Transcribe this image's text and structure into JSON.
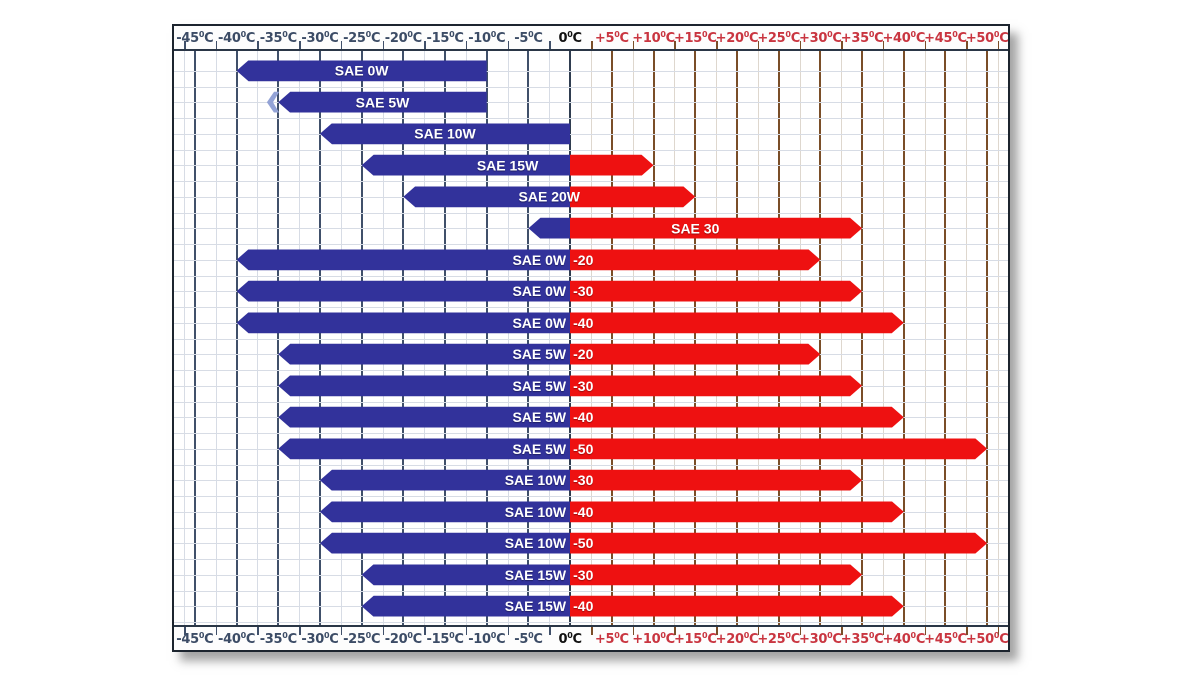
{
  "chart_data": {
    "type": "bar",
    "orientation": "horizontal-range",
    "legend": "none",
    "grid": "on",
    "x_axis": {
      "min": -47.5,
      "max": 52.5,
      "major_step_c": 5,
      "minor_step_c": 2.5,
      "unit_letter": "C",
      "degree_glyph": "0",
      "ticks": [
        {
          "value": -45,
          "label": "-45"
        },
        {
          "value": -40,
          "label": "-40"
        },
        {
          "value": -35,
          "label": "-35"
        },
        {
          "value": -30,
          "label": "-30"
        },
        {
          "value": -25,
          "label": "-25"
        },
        {
          "value": -20,
          "label": "-20"
        },
        {
          "value": -15,
          "label": "-15"
        },
        {
          "value": -10,
          "label": "-10"
        },
        {
          "value": -5,
          "label": "-5"
        },
        {
          "value": 0,
          "label": "0"
        },
        {
          "value": 5,
          "label": "+5"
        },
        {
          "value": 10,
          "label": "+10"
        },
        {
          "value": 15,
          "label": "+15"
        },
        {
          "value": 20,
          "label": "+20"
        },
        {
          "value": 25,
          "label": "+25"
        },
        {
          "value": 30,
          "label": "+30"
        },
        {
          "value": 35,
          "label": "+35"
        },
        {
          "value": 40,
          "label": "+40"
        },
        {
          "value": 45,
          "label": "+45"
        },
        {
          "value": 50,
          "label": "+50"
        }
      ]
    },
    "bars": [
      {
        "label": "SAE 0W",
        "suffix": null,
        "cold_c": -40,
        "hot_c": -10
      },
      {
        "label": "SAE 5W",
        "suffix": null,
        "cold_c": -35,
        "hot_c": -10,
        "double_arrow_left": true
      },
      {
        "label": "SAE 10W",
        "suffix": null,
        "cold_c": -30,
        "hot_c": 0
      },
      {
        "label": "SAE 15W",
        "suffix": null,
        "cold_c": -25,
        "hot_c": 10
      },
      {
        "label": "SAE 20W",
        "suffix": null,
        "cold_c": -20,
        "hot_c": 15
      },
      {
        "label": "SAE 30",
        "suffix": null,
        "cold_c": -5,
        "hot_c": 35
      },
      {
        "label": "SAE 0W",
        "suffix": "-20",
        "cold_c": -40,
        "hot_c": 30
      },
      {
        "label": "SAE 0W",
        "suffix": "-30",
        "cold_c": -40,
        "hot_c": 35
      },
      {
        "label": "SAE 0W",
        "suffix": "-40",
        "cold_c": -40,
        "hot_c": 40
      },
      {
        "label": "SAE 5W",
        "suffix": "-20",
        "cold_c": -35,
        "hot_c": 30
      },
      {
        "label": "SAE 5W",
        "suffix": "-30",
        "cold_c": -35,
        "hot_c": 35
      },
      {
        "label": "SAE 5W",
        "suffix": "-40",
        "cold_c": -35,
        "hot_c": 40
      },
      {
        "label": "SAE 5W",
        "suffix": "-50",
        "cold_c": -35,
        "hot_c": 50
      },
      {
        "label": "SAE 10W",
        "suffix": "-30",
        "cold_c": -30,
        "hot_c": 35
      },
      {
        "label": "SAE 10W",
        "suffix": "-40",
        "cold_c": -30,
        "hot_c": 40
      },
      {
        "label": "SAE 10W",
        "suffix": "-50",
        "cold_c": -30,
        "hot_c": 50
      },
      {
        "label": "SAE 15W",
        "suffix": "-30",
        "cold_c": -25,
        "hot_c": 35
      },
      {
        "label": "SAE 15W",
        "suffix": "-40",
        "cold_c": -25,
        "hot_c": 40
      }
    ],
    "colors": {
      "cold_bar": "#32329B",
      "hot_bar": "#EE1111",
      "double_arrow_chevron": "#93A3D6",
      "grid_major_negative": "#40506A",
      "grid_major_positive": "#7A4E28",
      "grid_zero_line": "#2F3D50",
      "grid_minor_negative": "#D7DCE5",
      "grid_minor_positive": "#DED7CE",
      "tick_label_negative": "#3C4C66",
      "tick_label_zero": "#111111",
      "tick_label_positive": "#C93540"
    }
  }
}
